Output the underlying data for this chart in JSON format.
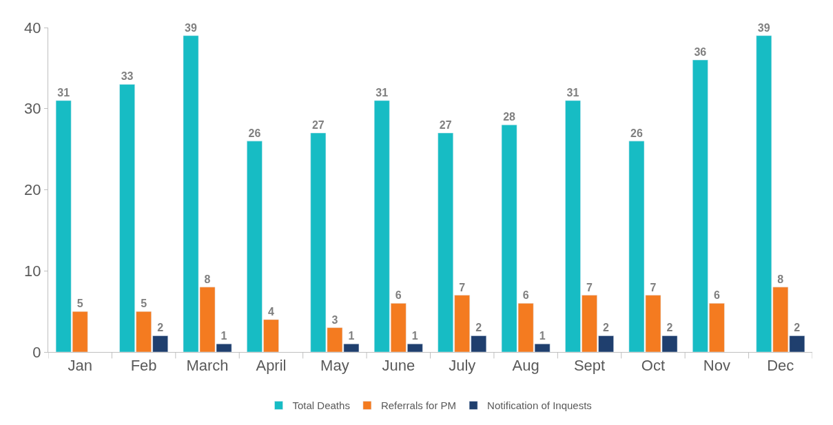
{
  "chart_data": {
    "type": "bar",
    "categories": [
      "Jan",
      "Feb",
      "March",
      "April",
      "May",
      "June",
      "July",
      "Aug",
      "Sept",
      "Oct",
      "Nov",
      "Dec"
    ],
    "series": [
      {
        "name": "Total Deaths",
        "color": "#17bcc4",
        "values": [
          31,
          33,
          39,
          26,
          27,
          31,
          27,
          28,
          31,
          26,
          36,
          39
        ]
      },
      {
        "name": "Referrals for PM",
        "color": "#f47b20",
        "values": [
          5,
          5,
          8,
          4,
          3,
          6,
          7,
          6,
          7,
          7,
          6,
          8
        ]
      },
      {
        "name": "Notification of Inquests",
        "color": "#1f3f6e",
        "values": [
          null,
          2,
          1,
          null,
          1,
          1,
          2,
          1,
          2,
          2,
          null,
          2
        ]
      }
    ],
    "ylim": [
      0,
      40
    ],
    "yticks": [
      0,
      10,
      20,
      30,
      40
    ],
    "data_labels": true,
    "legend": "bottom"
  }
}
